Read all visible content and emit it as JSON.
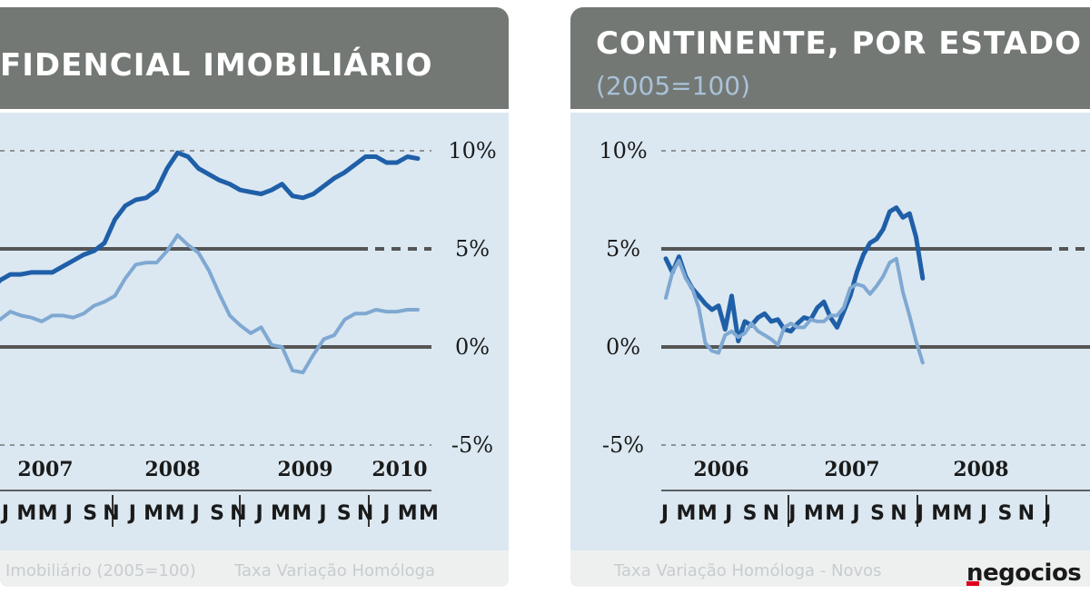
{
  "brand": {
    "name": "negocios",
    "accent": "#e0001a"
  },
  "colors": {
    "dark_series": "#1f5fa8",
    "light_series": "#7fa8d2",
    "header": "#737874",
    "plot_bg": "#dbe8f1"
  },
  "chart_data": [
    {
      "type": "line",
      "title": "FIDENCIAL IMOBILIÁRIO",
      "y_ticks": [
        "10%",
        "5%",
        "0%",
        "-5%"
      ],
      "y_tick_values": [
        10,
        5,
        0,
        -5
      ],
      "ylim": [
        -5,
        10
      ],
      "years": [
        "2007",
        "2008",
        "2009",
        "2010"
      ],
      "month_labels": [
        "J",
        "M",
        "M",
        "J",
        "S",
        "N",
        "J",
        "M",
        "M",
        "J",
        "S",
        "N",
        "J",
        "M",
        "M",
        "J",
        "S",
        "N",
        "J",
        "M",
        "M"
      ],
      "legend": [
        "Imobiliário (2005=100)",
        "Taxa Variação Homóloga"
      ],
      "x": [
        -0.5,
        0,
        0.5,
        1,
        1.5,
        2,
        2.5,
        3,
        3.5,
        4,
        4.5,
        5,
        5.5,
        6,
        6.5,
        7,
        7.5,
        8,
        8.5,
        9,
        9.5,
        10,
        10.5,
        11,
        11.5,
        12,
        12.5,
        13,
        13.5,
        14,
        14.5,
        15,
        15.5,
        16,
        16.5,
        17,
        17.5,
        18,
        18.5,
        19,
        19.5,
        20
      ],
      "series": [
        {
          "name": "Imobiliário (2005=100)",
          "color": "#1f5fa8",
          "values": [
            2.8,
            3.4,
            3.7,
            3.7,
            3.8,
            3.8,
            3.8,
            4.1,
            4.4,
            4.7,
            4.9,
            5.3,
            6.5,
            7.2,
            7.5,
            7.6,
            8.0,
            9.1,
            9.9,
            9.7,
            9.1,
            8.8,
            8.5,
            8.3,
            8.0,
            7.9,
            7.8,
            8.0,
            8.3,
            7.7,
            7.6,
            7.8,
            8.2,
            8.6,
            8.9,
            9.3,
            9.7,
            9.7,
            9.4,
            9.4,
            9.7,
            9.6
          ]
        },
        {
          "name": "Taxa Variação Homóloga",
          "color": "#7fa8d2",
          "values": [
            1.8,
            1.4,
            1.8,
            1.6,
            1.5,
            1.3,
            1.6,
            1.6,
            1.5,
            1.7,
            2.1,
            2.3,
            2.6,
            3.5,
            4.2,
            4.3,
            4.3,
            4.9,
            5.7,
            5.2,
            4.8,
            3.9,
            2.7,
            1.6,
            1.1,
            0.7,
            1.0,
            0.1,
            0.0,
            -1.2,
            -1.3,
            -0.4,
            0.4,
            0.6,
            1.4,
            1.7,
            1.7,
            1.9,
            1.8,
            1.8,
            1.9,
            1.9
          ]
        }
      ]
    },
    {
      "type": "line",
      "title": "CONTINENTE, POR ESTADO DE",
      "subtitle": "(2005=100)",
      "y_ticks": [
        "10%",
        "5%",
        "0%",
        "-5%"
      ],
      "y_tick_values": [
        10,
        5,
        0,
        -5
      ],
      "ylim": [
        -5,
        10
      ],
      "years": [
        "2006",
        "2007",
        "2008"
      ],
      "month_labels": [
        "J",
        "M",
        "M",
        "J",
        "S",
        "N",
        "J",
        "M",
        "M",
        "J",
        "S",
        "N",
        "J",
        "M",
        "M",
        "J",
        "S",
        "N",
        "J"
      ],
      "legend": [
        "Taxa Variação Homóloga - Novos"
      ],
      "x": [
        0,
        0.5,
        1,
        1.5,
        2,
        2.5,
        3,
        3.5,
        4,
        4.5,
        5,
        5.5,
        6,
        6.5,
        7,
        7.5,
        8,
        8.5,
        9,
        9.5,
        10,
        10.5,
        11,
        11.5,
        12,
        12.5,
        13,
        13.5,
        14,
        14.5,
        15,
        15.5,
        16,
        16.5,
        17,
        17.5,
        18,
        18.5,
        19,
        19.5
      ],
      "series": [
        {
          "name": "dark",
          "color": "#1f5fa8",
          "values": [
            4.5,
            3.8,
            4.6,
            3.6,
            3.0,
            2.6,
            2.2,
            1.9,
            2.1,
            0.9,
            2.6,
            0.3,
            1.3,
            1.1,
            1.5,
            1.7,
            1.3,
            1.4,
            0.9,
            0.8,
            1.2,
            1.5,
            1.4,
            2.0,
            2.3,
            1.5,
            1.0,
            1.8,
            2.6,
            3.8,
            4.7,
            5.3,
            5.5,
            6.0,
            6.9,
            7.1,
            6.6,
            6.8,
            5.6,
            3.5
          ]
        },
        {
          "name": "light",
          "color": "#7fa8d2",
          "values": [
            2.5,
            3.8,
            4.4,
            3.5,
            3.0,
            2.0,
            0.2,
            -0.2,
            -0.3,
            0.6,
            0.8,
            0.5,
            0.7,
            1.2,
            0.8,
            0.6,
            0.4,
            0.1,
            1.0,
            1.2,
            1.0,
            1.0,
            1.4,
            1.3,
            1.3,
            1.6,
            1.6,
            2.0,
            3.0,
            3.2,
            3.1,
            2.7,
            3.1,
            3.6,
            4.3,
            4.5,
            2.8,
            1.6,
            0.3,
            -0.8
          ]
        }
      ]
    }
  ]
}
